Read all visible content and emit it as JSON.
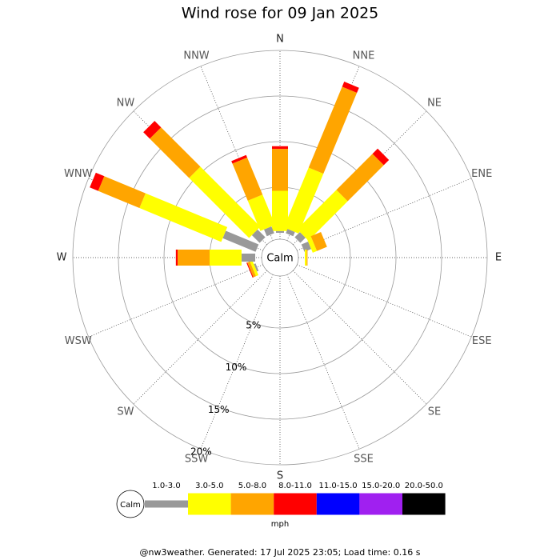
{
  "chart_data": {
    "type": "windrose",
    "title": "Wind rose for 09 Jan 2025",
    "calm_label": "Calm",
    "unit_label": "mph",
    "footer": "@nw3weather. Generated: 17 Jul 2025 23:05; Load time: 0.16 s",
    "categories": [
      "N",
      "NNE",
      "NE",
      "ENE",
      "E",
      "ESE",
      "SE",
      "SSE",
      "S",
      "SSW",
      "SW",
      "WSW",
      "W",
      "WNW",
      "NW",
      "NNW"
    ],
    "ylim": [
      0,
      20
    ],
    "yticks": [
      {
        "value": 5,
        "label": "5%"
      },
      {
        "value": 10,
        "label": "10%"
      },
      {
        "value": 15,
        "label": "15%"
      },
      {
        "value": 20,
        "label": "20%"
      }
    ],
    "series": [
      {
        "name": "1.0-3.0",
        "color": "#999999",
        "values": [
          0.2,
          0.5,
          0.8,
          0.8,
          0,
          0,
          0,
          0,
          0,
          0,
          0,
          0.2,
          1.5,
          3.9,
          1.2,
          0.8
        ]
      },
      {
        "name": "3.0-5.0",
        "color": "#ffff00",
        "values": [
          4.4,
          7.1,
          6.1,
          0.5,
          0.2,
          0,
          0,
          0,
          0,
          0,
          0,
          0.3,
          3.5,
          9.7,
          9.3,
          3.6
        ]
      },
      {
        "name": "5.0-8.0",
        "color": "#ffa500",
        "values": [
          4.6,
          9.6,
          5.6,
          1.2,
          0.1,
          0,
          0,
          0,
          0,
          0,
          0,
          0.3,
          3.5,
          4.9,
          6.1,
          4.4
        ]
      },
      {
        "name": "8.0-11.0",
        "color": "#ff0000",
        "values": [
          0.3,
          0.6,
          0.8,
          0,
          0,
          0,
          0,
          0,
          0,
          0,
          0,
          0.1,
          0.2,
          1.0,
          1.0,
          0.3
        ]
      },
      {
        "name": "11.0-15.0",
        "color": "#0000ff",
        "values": [
          0,
          0,
          0,
          0,
          0,
          0,
          0,
          0,
          0,
          0,
          0,
          0,
          0,
          0,
          0,
          0
        ]
      },
      {
        "name": "15.0-20.0",
        "color": "#a020f0",
        "values": [
          0,
          0,
          0,
          0,
          0,
          0,
          0,
          0,
          0,
          0,
          0,
          0,
          0,
          0,
          0,
          0
        ]
      },
      {
        "name": "20.0-50.0",
        "color": "#000000",
        "values": [
          0,
          0,
          0,
          0,
          0,
          0,
          0,
          0,
          0,
          0,
          0,
          0,
          0,
          0,
          0,
          0
        ]
      }
    ]
  }
}
